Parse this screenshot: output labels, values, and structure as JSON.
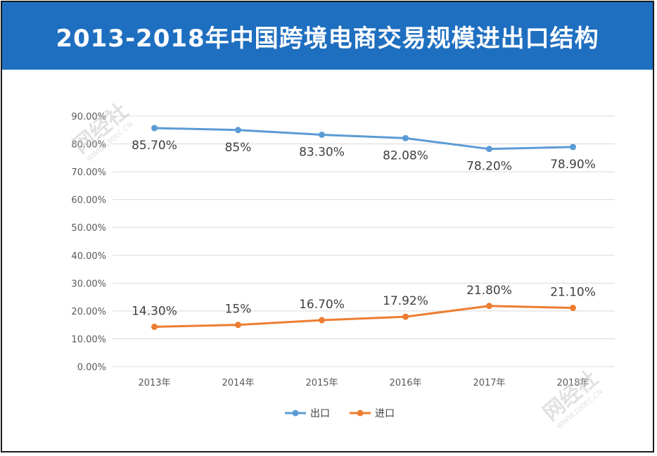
{
  "chart_data": {
    "type": "line",
    "title": "2013-2018年中国跨境电商交易规模进出口结构",
    "categories": [
      "2013年",
      "2014年",
      "2015年",
      "2016年",
      "2017年",
      "2018年"
    ],
    "series": [
      {
        "name": "出口",
        "color": "#5b9bd5",
        "values": [
          85.7,
          85,
          83.3,
          82.08,
          78.2,
          78.9
        ],
        "labels": [
          "85.70%",
          "85%",
          "83.30%",
          "82.08%",
          "78.20%",
          "78.90%"
        ]
      },
      {
        "name": "进口",
        "color": "#ed7d31",
        "values": [
          14.3,
          15,
          16.7,
          17.92,
          21.8,
          21.1
        ],
        "labels": [
          "14.30%",
          "15%",
          "16.70%",
          "17.92%",
          "21.80%",
          "21.10%"
        ]
      }
    ],
    "ylim": [
      0,
      90
    ],
    "yticks": [
      "0.00%",
      "10.00%",
      "20.00%",
      "30.00%",
      "40.00%",
      "50.00%",
      "60.00%",
      "70.00%",
      "80.00%",
      "90.00%"
    ],
    "grid": true,
    "legend": "bottom"
  },
  "watermark": {
    "brand": "网经社",
    "url": "WWW.100EC.CN"
  }
}
